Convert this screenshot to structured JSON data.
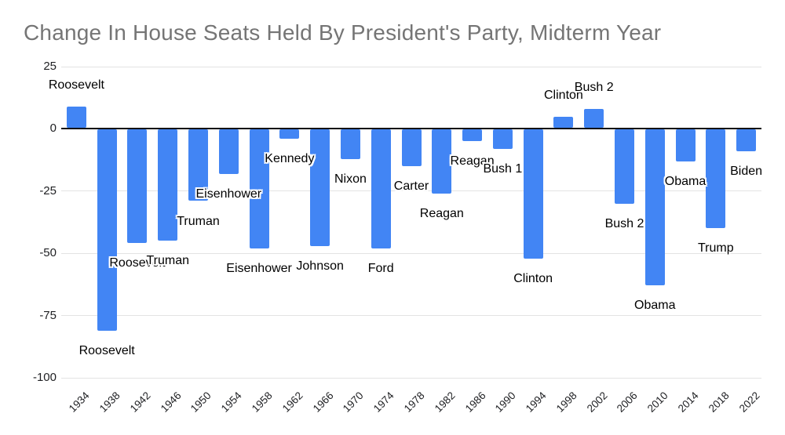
{
  "chart_data": {
    "type": "bar",
    "title": "Change In House Seats Held By President's Party, Midterm Year",
    "categories": [
      "1934",
      "1938",
      "1942",
      "1946",
      "1950",
      "1954",
      "1958",
      "1962",
      "1966",
      "1970",
      "1974",
      "1978",
      "1982",
      "1986",
      "1990",
      "1994",
      "1998",
      "2002",
      "2006",
      "2010",
      "2014",
      "2018",
      "2022"
    ],
    "values": [
      9,
      -81,
      -46,
      -45,
      -29,
      -18,
      -48,
      -4,
      -47,
      -12,
      -48,
      -15,
      -26,
      -5,
      -8,
      -52,
      5,
      8,
      -30,
      -63,
      -13,
      -40,
      -9
    ],
    "bar_labels": [
      "Roosevelt",
      "Roosevelt",
      "Roosevelt",
      "Truman",
      "Truman",
      "Eisenhower",
      "Eisenhower",
      "Kennedy",
      "Johnson",
      "Nixon",
      "Ford",
      "Carter",
      "Reagan",
      "Reagan",
      "Bush 1",
      "Clinton",
      "Clinton",
      "Bush 2",
      "Bush 2",
      "Obama",
      "Obama",
      "Trump",
      "Biden"
    ],
    "xlabel": "",
    "ylabel": "",
    "ylim": [
      -100,
      25
    ],
    "yticks": [
      25,
      0,
      -25,
      -50,
      -75,
      -100
    ],
    "grid": true,
    "legend": "none",
    "colors": {
      "bar": "#4285f4",
      "title": "#757575",
      "axis_labels": "#202124",
      "gridline": "#e3e3e3",
      "zero_line": "#111111",
      "annotation_text": "#000000",
      "annotation_halo": "#ffffff",
      "background": "#ffffff"
    }
  }
}
